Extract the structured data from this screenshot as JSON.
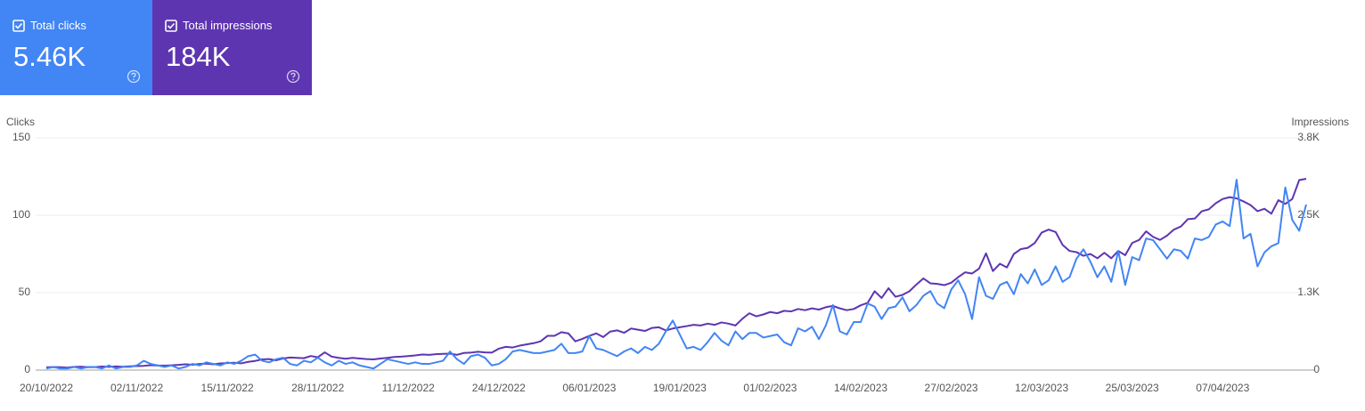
{
  "summary": [
    {
      "label": "Total clicks",
      "value": "5.46K",
      "color": "#4285f4"
    },
    {
      "label": "Total impressions",
      "value": "184K",
      "color": "#5e35b1"
    }
  ],
  "chart_data": {
    "type": "line",
    "ylabel": "Clicks",
    "y2label": "Impressions",
    "categories": [
      "20/10/2022",
      null,
      null,
      null,
      null,
      null,
      null,
      null,
      null,
      null,
      null,
      null,
      null,
      "02/11/2022",
      null,
      null,
      null,
      null,
      null,
      null,
      null,
      null,
      null,
      null,
      null,
      null,
      "15/11/2022",
      null,
      null,
      null,
      null,
      null,
      null,
      null,
      null,
      null,
      null,
      null,
      null,
      "28/11/2022",
      null,
      null,
      null,
      null,
      null,
      null,
      null,
      null,
      null,
      null,
      null,
      null,
      "11/12/2022",
      null,
      null,
      null,
      null,
      null,
      null,
      null,
      null,
      null,
      null,
      null,
      null,
      "24/12/2022",
      null,
      null,
      null,
      null,
      null,
      null,
      null,
      null,
      null,
      null,
      null,
      null,
      "06/01/2023",
      null,
      null,
      null,
      null,
      null,
      null,
      null,
      null,
      null,
      null,
      null,
      null,
      "19/01/2023",
      null,
      null,
      null,
      null,
      null,
      null,
      null,
      null,
      null,
      null,
      null,
      null,
      "01/02/2023",
      null,
      null,
      null,
      null,
      null,
      null,
      null,
      null,
      null,
      null,
      null,
      null,
      "14/02/2023",
      null,
      null,
      null,
      null,
      null,
      null,
      null,
      null,
      null,
      null,
      null,
      null,
      "27/02/2023",
      null,
      null,
      null,
      null,
      null,
      null,
      null,
      null,
      null,
      null,
      null,
      null,
      "12/03/2023",
      null,
      null,
      null,
      null,
      null,
      null,
      null,
      null,
      null,
      null,
      null,
      null,
      "25/03/2023",
      null,
      null,
      null,
      null,
      null,
      null,
      null,
      null,
      null,
      null,
      null,
      null,
      "07/04/2023",
      null,
      null,
      null,
      null,
      null,
      null,
      null,
      null,
      null,
      null,
      null,
      null
    ],
    "series": [
      {
        "color": "#5e35b1",
        "axis": "y2",
        "values": [
          45,
          50,
          48,
          40,
          52,
          55,
          48,
          50,
          58,
          52,
          60,
          55,
          62,
          65,
          70,
          80,
          75,
          72,
          78,
          85,
          95,
          88,
          100,
          105,
          95,
          110,
          115,
          120,
          110,
          135,
          150,
          175,
          180,
          160,
          190,
          205,
          200,
          195,
          230,
          210,
          290,
          220,
          200,
          185,
          200,
          190,
          180,
          175,
          190,
          200,
          215,
          220,
          230,
          240,
          255,
          250,
          260,
          265,
          270,
          250,
          280,
          285,
          300,
          290,
          285,
          350,
          380,
          370,
          400,
          420,
          440,
          470,
          560,
          560,
          620,
          600,
          470,
          510,
          560,
          600,
          540,
          630,
          650,
          610,
          680,
          660,
          640,
          690,
          700,
          650,
          680,
          700,
          720,
          740,
          730,
          760,
          740,
          780,
          760,
          730,
          840,
          930,
          880,
          910,
          950,
          930,
          970,
          960,
          1000,
          980,
          1010,
          990,
          1030,
          1050,
          1010,
          980,
          1000,
          1060,
          1100,
          1290,
          1180,
          1340,
          1200,
          1230,
          1290,
          1400,
          1500,
          1420,
          1410,
          1390,
          1430,
          1520,
          1600,
          1580,
          1660,
          1910,
          1620,
          1740,
          1680,
          1900,
          1980,
          2000,
          2080,
          2250,
          2300,
          2260,
          2050,
          1950,
          1930,
          1870,
          1900,
          1830,
          1920,
          1830,
          1950,
          1880,
          2080,
          2130,
          2270,
          2180,
          2130,
          2200,
          2300,
          2350,
          2470,
          2480,
          2600,
          2630,
          2730,
          2800,
          2830,
          2810,
          2760,
          2700,
          2600,
          2640,
          2560,
          2780,
          2720,
          2800,
          3110,
          3130
        ]
      },
      {
        "color": "#4285f4",
        "values": [
          1,
          2,
          1,
          1,
          2,
          1,
          2,
          2,
          1,
          3,
          1,
          2,
          2,
          3,
          6,
          4,
          3,
          2,
          3,
          1,
          2,
          4,
          3,
          5,
          4,
          3,
          5,
          4,
          6,
          9,
          10,
          6,
          5,
          7,
          8,
          4,
          3,
          6,
          5,
          8,
          5,
          3,
          6,
          4,
          5,
          3,
          2,
          1,
          4,
          7,
          6,
          5,
          4,
          5,
          4,
          4,
          5,
          6,
          12,
          7,
          4,
          9,
          10,
          8,
          3,
          4,
          7,
          12,
          13,
          12,
          11,
          11,
          12,
          13,
          17,
          11,
          11,
          12,
          22,
          14,
          13,
          11,
          9,
          12,
          14,
          11,
          15,
          13,
          17,
          25,
          32,
          23,
          14,
          15,
          13,
          18,
          24,
          19,
          16,
          25,
          20,
          24,
          24,
          21,
          22,
          23,
          18,
          16,
          27,
          25,
          28,
          20,
          29,
          42,
          25,
          23,
          31,
          31,
          43,
          41,
          33,
          40,
          41,
          47,
          38,
          42,
          48,
          51,
          43,
          40,
          52,
          58,
          49,
          33,
          60,
          48,
          46,
          55,
          57,
          49,
          62,
          56,
          65,
          55,
          58,
          67,
          57,
          60,
          72,
          78,
          70,
          60,
          67,
          57,
          77,
          55,
          73,
          71,
          85,
          84,
          78,
          72,
          78,
          77,
          72,
          85,
          84,
          86,
          94,
          96,
          93,
          123,
          85,
          88,
          67,
          76,
          80,
          82,
          118,
          97,
          90,
          107
        ]
      }
    ],
    "ylim": [
      0,
      150
    ],
    "yticks": [
      0,
      50,
      100,
      150
    ],
    "y2lim": [
      0,
      3800
    ],
    "y2ticks": [
      0,
      {
        "value": 1267,
        "label": "1.3K"
      },
      {
        "value": 2533,
        "label": "2.5K"
      },
      {
        "value": 3800,
        "label": "3.8K"
      }
    ],
    "grid": true
  }
}
